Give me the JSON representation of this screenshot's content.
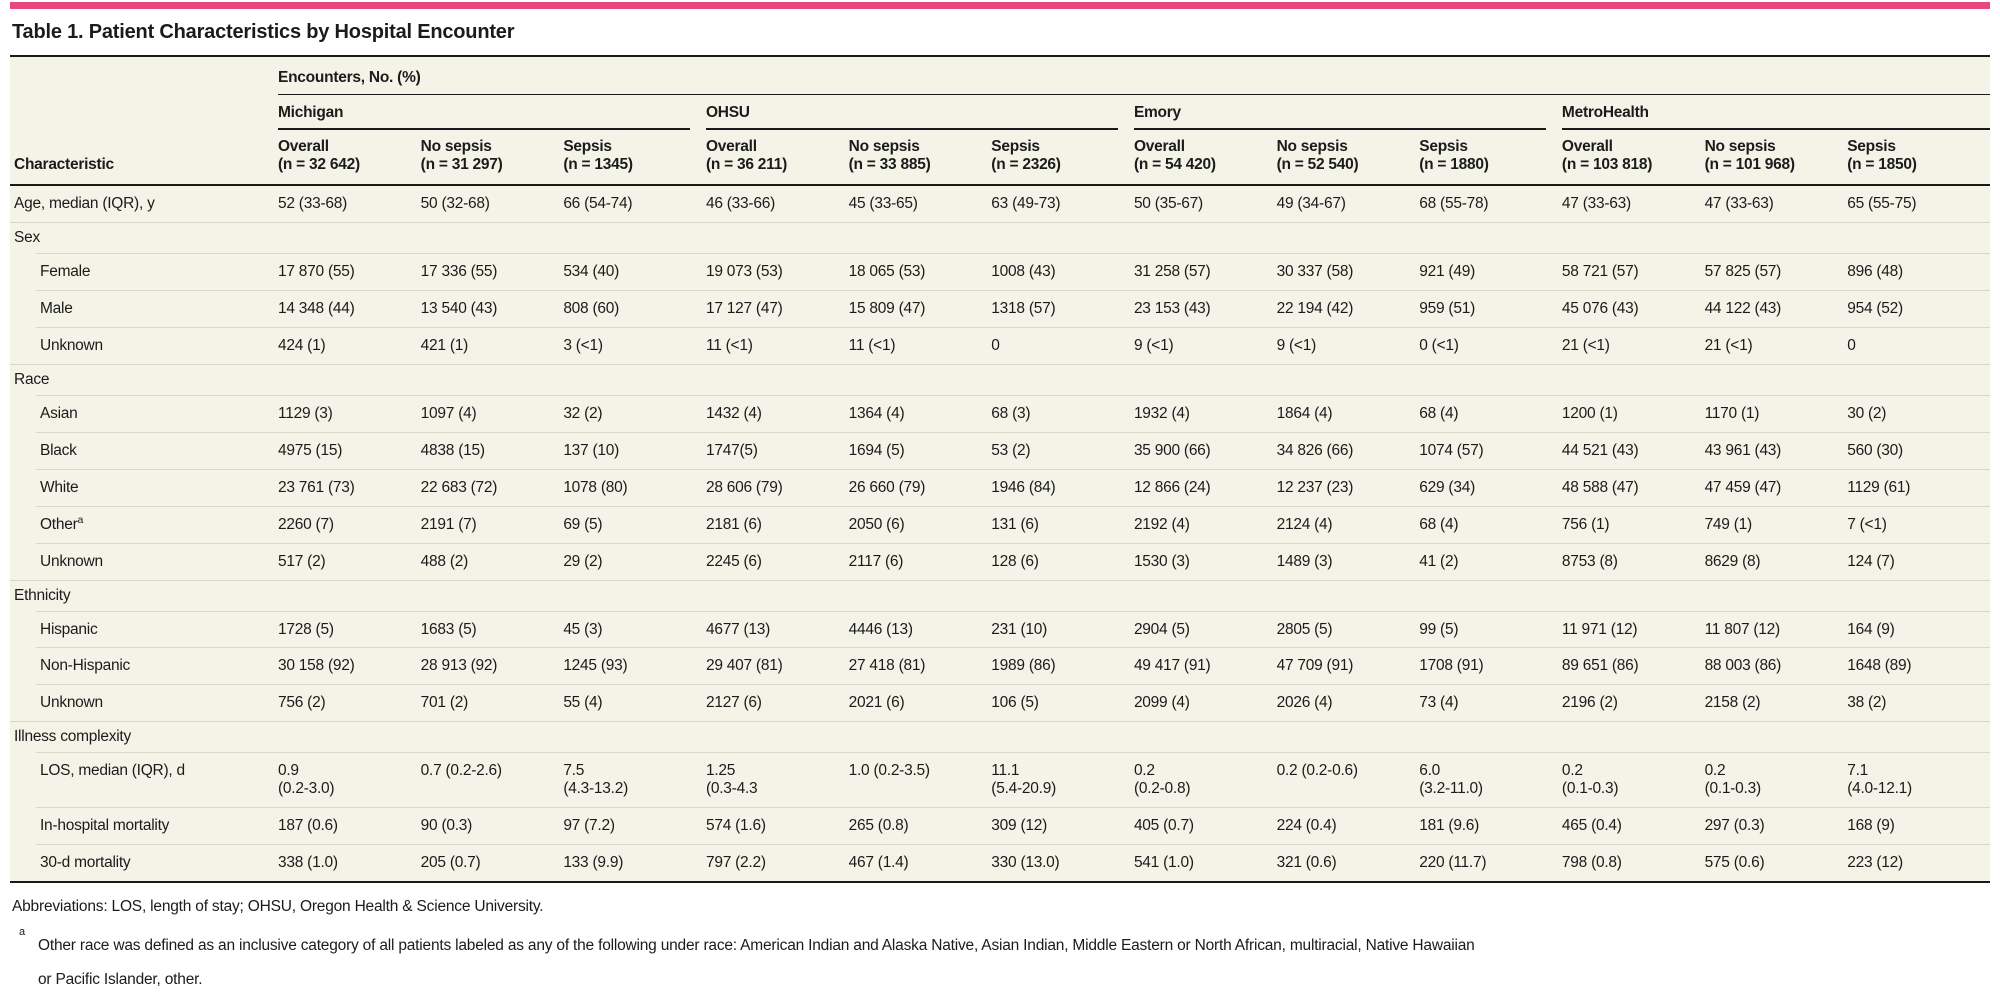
{
  "accent_color": "#e8487c",
  "title": "Table 1. Patient Characteristics by Hospital Encounter",
  "table": {
    "group_header": "Encounters, No. (%)",
    "characteristic_header": "Characteristic",
    "hospitals": [
      {
        "name": "Michigan",
        "subcols": [
          {
            "label": "Overall",
            "n": "(n = 32 642)"
          },
          {
            "label": "No sepsis",
            "n": "(n = 31 297)"
          },
          {
            "label": "Sepsis",
            "n": "(n = 1345)"
          }
        ]
      },
      {
        "name": "OHSU",
        "subcols": [
          {
            "label": "Overall",
            "n": "(n = 36 211)"
          },
          {
            "label": "No sepsis",
            "n": "(n = 33 885)"
          },
          {
            "label": "Sepsis",
            "n": "(n = 2326)"
          }
        ]
      },
      {
        "name": "Emory",
        "subcols": [
          {
            "label": "Overall",
            "n": "(n = 54 420)"
          },
          {
            "label": "No sepsis",
            "n": "(n = 52 540)"
          },
          {
            "label": "Sepsis",
            "n": "(n = 1880)"
          }
        ]
      },
      {
        "name": "MetroHealth",
        "subcols": [
          {
            "label": "Overall",
            "n": "(n = 103 818)"
          },
          {
            "label": "No sepsis",
            "n": "(n = 101 968)"
          },
          {
            "label": "Sepsis",
            "n": "(n = 1850)"
          }
        ]
      }
    ],
    "rows": [
      {
        "type": "data",
        "indent": 0,
        "label": "Age, median (IQR), y",
        "values": [
          "52 (33-68)",
          "50 (32-68)",
          "66 (54-74)",
          "46 (33-66)",
          "45 (33-65)",
          "63 (49-73)",
          "50 (35-67)",
          "49 (34-67)",
          "68 (55-78)",
          "47 (33-63)",
          "47 (33-63)",
          "65 (55-75)"
        ]
      },
      {
        "type": "section",
        "label": "Sex"
      },
      {
        "type": "data",
        "indent": 1,
        "label": "Female",
        "values": [
          "17 870 (55)",
          "17 336 (55)",
          "534 (40)",
          "19 073 (53)",
          "18 065 (53)",
          "1008 (43)",
          "31 258 (57)",
          "30 337 (58)",
          "921 (49)",
          "58 721 (57)",
          "57 825 (57)",
          "896 (48)"
        ]
      },
      {
        "type": "data",
        "indent": 1,
        "label": "Male",
        "values": [
          "14 348 (44)",
          "13 540 (43)",
          "808 (60)",
          "17 127 (47)",
          "15 809 (47)",
          "1318 (57)",
          "23 153 (43)",
          "22 194 (42)",
          "959 (51)",
          "45 076 (43)",
          "44 122 (43)",
          "954 (52)"
        ]
      },
      {
        "type": "data",
        "indent": 1,
        "label": "Unknown",
        "values": [
          "424 (1)",
          "421 (1)",
          "3 (<1)",
          "11 (<1)",
          "11 (<1)",
          "0",
          "9 (<1)",
          "9 (<1)",
          "0 (<1)",
          "21 (<1)",
          "21 (<1)",
          "0"
        ]
      },
      {
        "type": "section",
        "label": "Race"
      },
      {
        "type": "data",
        "indent": 1,
        "label": "Asian",
        "values": [
          "1129 (3)",
          "1097 (4)",
          "32 (2)",
          "1432 (4)",
          "1364 (4)",
          "68 (3)",
          "1932 (4)",
          "1864 (4)",
          "68 (4)",
          "1200 (1)",
          "1170 (1)",
          "30 (2)"
        ]
      },
      {
        "type": "data",
        "indent": 1,
        "label": "Black",
        "values": [
          "4975 (15)",
          "4838 (15)",
          "137 (10)",
          "1747(5)",
          "1694 (5)",
          "53 (2)",
          "35 900 (66)",
          "34 826 (66)",
          "1074 (57)",
          "44 521 (43)",
          "43 961 (43)",
          "560 (30)"
        ]
      },
      {
        "type": "data",
        "indent": 1,
        "label": "White",
        "values": [
          "23 761 (73)",
          "22 683 (72)",
          "1078 (80)",
          "28 606 (79)",
          "26 660 (79)",
          "1946 (84)",
          "12 866 (24)",
          "12 237 (23)",
          "629 (34)",
          "48 588 (47)",
          "47 459 (47)",
          "1129 (61)"
        ]
      },
      {
        "type": "data",
        "indent": 1,
        "label": "Other",
        "sup": "a",
        "values": [
          "2260 (7)",
          "2191 (7)",
          "69 (5)",
          "2181 (6)",
          "2050 (6)",
          "131 (6)",
          "2192 (4)",
          "2124 (4)",
          "68 (4)",
          "756 (1)",
          "749 (1)",
          "7 (<1)"
        ]
      },
      {
        "type": "data",
        "indent": 1,
        "label": "Unknown",
        "values": [
          "517 (2)",
          "488 (2)",
          "29 (2)",
          "2245 (6)",
          "2117 (6)",
          "128 (6)",
          "1530 (3)",
          "1489 (3)",
          "41 (2)",
          "8753 (8)",
          "8629 (8)",
          "124 (7)"
        ]
      },
      {
        "type": "section",
        "label": "Ethnicity"
      },
      {
        "type": "data",
        "indent": 1,
        "label": "Hispanic",
        "values": [
          "1728 (5)",
          "1683 (5)",
          "45 (3)",
          "4677 (13)",
          "4446 (13)",
          "231 (10)",
          "2904 (5)",
          "2805 (5)",
          "99 (5)",
          "11 971 (12)",
          "11 807 (12)",
          "164 (9)"
        ]
      },
      {
        "type": "data",
        "indent": 1,
        "label": "Non-Hispanic",
        "values": [
          "30 158 (92)",
          "28 913 (92)",
          "1245 (93)",
          "29 407 (81)",
          "27 418 (81)",
          "1989 (86)",
          "49 417 (91)",
          "47 709 (91)",
          "1708 (91)",
          "89 651 (86)",
          "88 003 (86)",
          "1648 (89)"
        ]
      },
      {
        "type": "data",
        "indent": 1,
        "label": "Unknown",
        "values": [
          "756 (2)",
          "701 (2)",
          "55 (4)",
          "2127 (6)",
          "2021 (6)",
          "106 (5)",
          "2099 (4)",
          "2026 (4)",
          "73 (4)",
          "2196 (2)",
          "2158 (2)",
          "38 (2)"
        ]
      },
      {
        "type": "section",
        "label": "Illness complexity"
      },
      {
        "type": "data",
        "indent": 1,
        "label": "LOS, median (IQR), d",
        "values": [
          "0.9\n(0.2-3.0)",
          "0.7 (0.2-2.6)",
          "7.5\n(4.3-13.2)",
          "1.25\n(0.3-4.3",
          "1.0 (0.2-3.5)",
          "11.1\n(5.4-20.9)",
          "0.2\n(0.2-0.8)",
          "0.2 (0.2-0.6)",
          "6.0\n(3.2-11.0)",
          "0.2\n(0.1-0.3)",
          "0.2\n(0.1-0.3)",
          "7.1\n(4.0-12.1)"
        ]
      },
      {
        "type": "data",
        "indent": 1,
        "label": "In-hospital mortality",
        "values": [
          "187 (0.6)",
          "90 (0.3)",
          "97 (7.2)",
          "574 (1.6)",
          "265 (0.8)",
          "309 (12)",
          "405 (0.7)",
          "224 (0.4)",
          "181 (9.6)",
          "465 (0.4)",
          "297 (0.3)",
          "168 (9)"
        ]
      },
      {
        "type": "data",
        "indent": 1,
        "label": "30-d mortality",
        "values": [
          "338 (1.0)",
          "205 (0.7)",
          "133 (9.9)",
          "797 (2.2)",
          "467 (1.4)",
          "330 (13.0)",
          "541 (1.0)",
          "321 (0.6)",
          "220 (11.7)",
          "798 (0.8)",
          "575 (0.6)",
          "223 (12)"
        ]
      }
    ]
  },
  "footnotes": {
    "abbreviations": "Abbreviations: LOS, length of stay; OHSU, Oregon Health & Science University.",
    "a_marker": "a",
    "a_text": "Other race was defined as an inclusive category of all patients labeled as any of the following under race: American Indian and Alaska Native, Asian Indian, Middle Eastern or North African, multiracial, Native Hawaiian\nor Pacific Islander, other."
  }
}
